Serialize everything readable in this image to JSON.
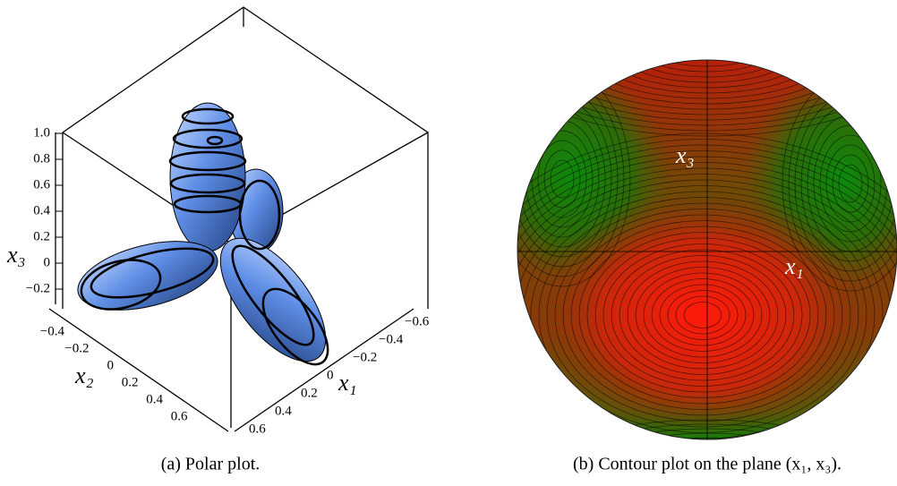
{
  "panels": [
    {
      "caption": "(a) Polar plot.",
      "axes": {
        "x3": {
          "label": "x₃",
          "ticks": [
            "1.0",
            "0.8",
            "0.6",
            "0.4",
            "0.2",
            "0",
            "−0.2"
          ]
        },
        "x2": {
          "label": "x₂",
          "ticks": [
            "−0.4",
            "−0.2",
            "0",
            "0.2",
            "0.4",
            "0.6"
          ]
        },
        "x1": {
          "label": "x₁",
          "ticks": [
            "−0.6",
            "−0.4",
            "−0.2",
            "0",
            "0.2",
            "0.4",
            "0.6"
          ]
        }
      }
    },
    {
      "caption": "(b) Contour plot on the plane (x₁, x₃).",
      "labels": {
        "x3": "x₃",
        "x1": "x₁"
      }
    }
  ]
}
